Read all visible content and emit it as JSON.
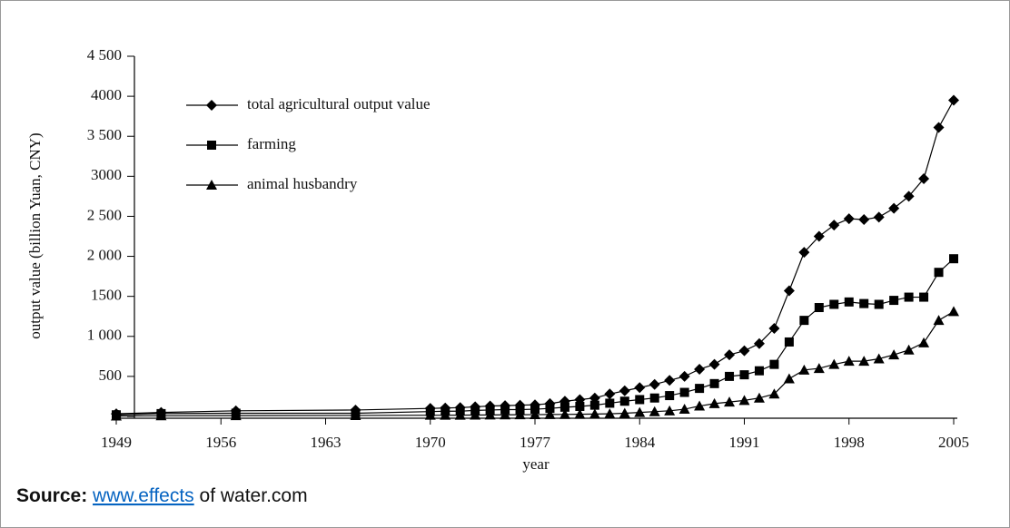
{
  "chart_data": {
    "type": "line",
    "x_label": "year",
    "y_label": "output value (billion Yuan, CNY)",
    "x": [
      1949,
      1952,
      1957,
      1965,
      1970,
      1971,
      1972,
      1973,
      1974,
      1975,
      1976,
      1977,
      1978,
      1979,
      1980,
      1981,
      1982,
      1983,
      1984,
      1985,
      1986,
      1987,
      1988,
      1989,
      1990,
      1991,
      1992,
      1993,
      1994,
      1995,
      1996,
      1997,
      1998,
      1999,
      2000,
      2001,
      2002,
      2003,
      2004,
      2005
    ],
    "series": [
      {
        "name": "total agricultural output value",
        "color": "#000000",
        "marker": "diamond",
        "values": [
          33,
          50,
          70,
          80,
          100,
          105,
          110,
          120,
          130,
          135,
          140,
          145,
          160,
          190,
          210,
          230,
          280,
          320,
          360,
          400,
          450,
          500,
          590,
          650,
          770,
          820,
          910,
          1100,
          1570,
          2050,
          2250,
          2390,
          2470,
          2460,
          2490,
          2600,
          2750,
          2970,
          3610,
          3950
        ]
      },
      {
        "name": "farming",
        "color": "#000000",
        "marker": "square",
        "values": [
          20,
          35,
          40,
          40,
          60,
          65,
          65,
          75,
          80,
          85,
          85,
          90,
          100,
          115,
          125,
          140,
          165,
          190,
          210,
          230,
          260,
          300,
          350,
          410,
          500,
          520,
          570,
          650,
          930,
          1200,
          1360,
          1400,
          1430,
          1410,
          1400,
          1450,
          1490,
          1490,
          1800,
          1970
        ]
      },
      {
        "name": "animal husbandry",
        "color": "#000000",
        "marker": "triangle",
        "values": [
          5,
          8,
          10,
          12,
          15,
          15,
          16,
          17,
          18,
          20,
          21,
          22,
          24,
          25,
          27,
          30,
          33,
          40,
          50,
          60,
          70,
          90,
          130,
          160,
          180,
          200,
          230,
          280,
          470,
          580,
          600,
          650,
          690,
          690,
          720,
          770,
          830,
          920,
          1200,
          1310
        ]
      }
    ],
    "xlim": [
      1949,
      2005
    ],
    "xticks": [
      1949,
      1956,
      1963,
      1970,
      1977,
      1984,
      1991,
      1998,
      2005
    ],
    "ylim": [
      0,
      4500
    ],
    "yticks": [
      0,
      500,
      {
        "value": 1000,
        "label": "1 000"
      },
      1500,
      {
        "value": 2000,
        "label": "2 000"
      },
      {
        "value": 2500,
        "label": "2 500"
      },
      3000,
      {
        "value": 3500,
        "label": "3 500"
      },
      4000,
      {
        "value": 4500,
        "label": "4 500"
      }
    ],
    "legend": "upper left"
  },
  "source": {
    "label": "Source:",
    "link": "www.effects",
    "rest": "of water.com"
  }
}
